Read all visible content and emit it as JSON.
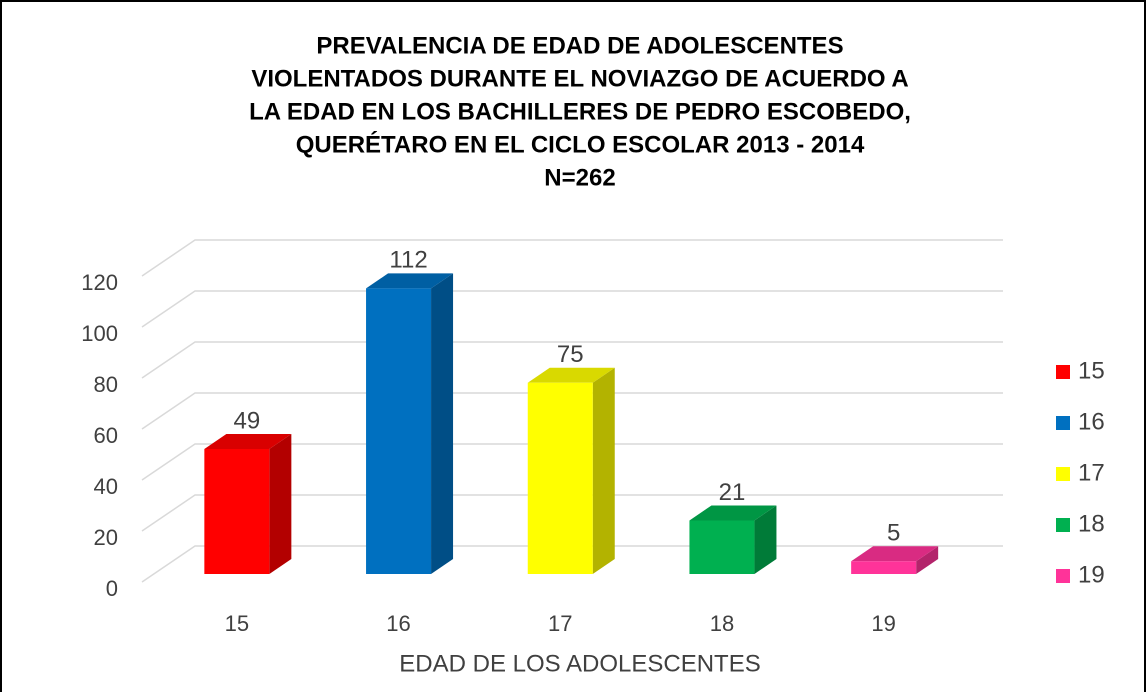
{
  "chart_data": {
    "type": "bar3d",
    "title": [
      "PREVALENCIA DE EDAD DE ADOLESCENTES",
      "VIOLENTADOS DURANTE EL NOVIAZGO DE ACUERDO A",
      "LA EDAD EN LOS BACHILLERES DE PEDRO ESCOBEDO,",
      "QUERÉTARO EN EL CICLO ESCOLAR 2013 - 2014",
      "N=262"
    ],
    "x_label": "EDAD DE LOS ADOLESCENTES",
    "categories": [
      "15",
      "16",
      "17",
      "18",
      "19"
    ],
    "values": [
      49,
      112,
      75,
      21,
      5
    ],
    "colors": [
      "#ff0000",
      "#0070c0",
      "#ffff00",
      "#00b050",
      "#ff3399"
    ],
    "ylim": [
      0,
      120
    ],
    "yticks": [
      0,
      20,
      40,
      60,
      80,
      100,
      120
    ],
    "grid": true,
    "legend": "right"
  }
}
